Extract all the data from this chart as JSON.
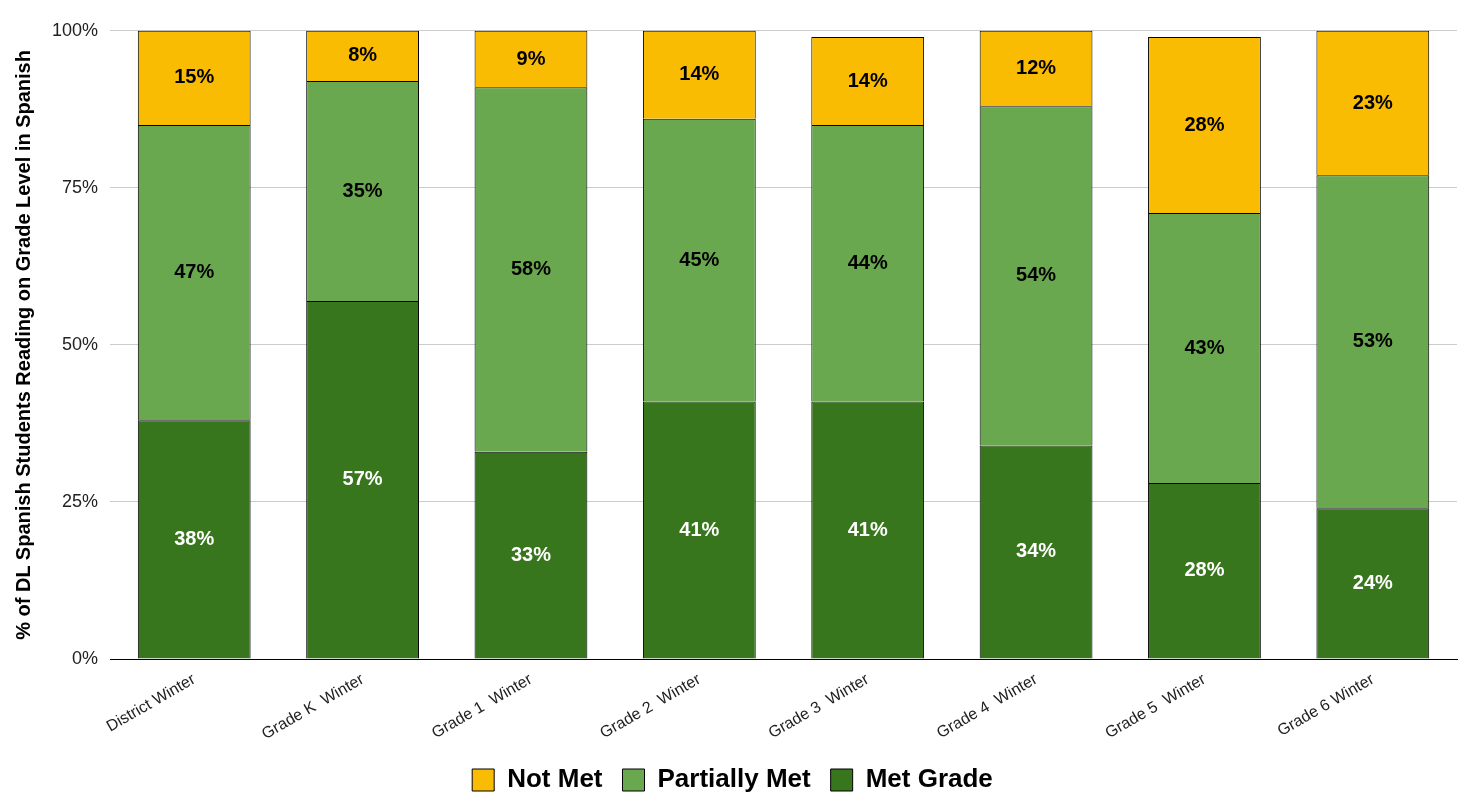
{
  "chart_data": {
    "type": "bar",
    "stacked": true,
    "ylabel": "% of DL Spanish Students Reading on Grade Level in Spanish",
    "categories": [
      "District Winter",
      "Grade K  Winter",
      "Grade 1  Winter",
      "Grade 2  Winter",
      "Grade 3  Winter",
      "Grade 4  Winter",
      "Grade 5  Winter",
      "Grade 6 Winter"
    ],
    "series": [
      {
        "name": "Met Grade",
        "color": "#38761d",
        "values": [
          38,
          57,
          33,
          41,
          41,
          34,
          28,
          24
        ],
        "value_labels": [
          "38%",
          "57%",
          "33%",
          "41%",
          "41%",
          "34%",
          "28%",
          "24%"
        ]
      },
      {
        "name": "Partially Met",
        "color": "#6aa84f",
        "values": [
          47,
          35,
          58,
          45,
          44,
          54,
          43,
          53
        ],
        "value_labels": [
          "47%",
          "35%",
          "58%",
          "45%",
          "44%",
          "54%",
          "43%",
          "53%"
        ]
      },
      {
        "name": "Not Met",
        "color": "#f9bc02",
        "values": [
          15,
          8,
          9,
          14,
          14,
          12,
          28,
          23
        ],
        "value_labels": [
          "15%",
          "8%",
          "9%",
          "14%",
          "14%",
          "12%",
          "28%",
          "23%"
        ]
      }
    ],
    "ylim": [
      0,
      100
    ],
    "yticks": [
      {
        "value": 0,
        "label": "0%"
      },
      {
        "value": 25,
        "label": "25%"
      },
      {
        "value": 50,
        "label": "50%"
      },
      {
        "value": 75,
        "label": "75%"
      },
      {
        "value": 100,
        "label": "100%"
      }
    ],
    "grid": "y",
    "legend": "bottom"
  }
}
